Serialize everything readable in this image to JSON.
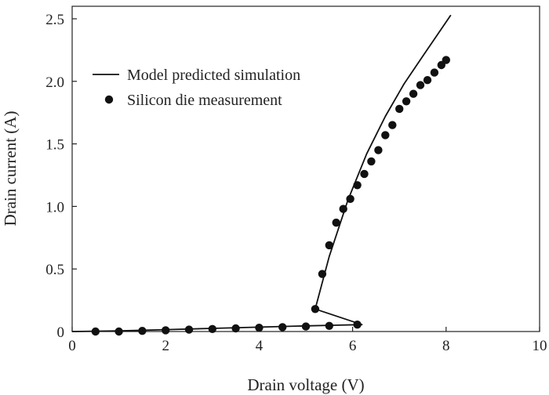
{
  "chart_data": {
    "type": "line",
    "title": "",
    "xlabel": "Drain voltage (V)",
    "ylabel": "Drain current (A)",
    "xlim": [
      0,
      10
    ],
    "ylim": [
      0,
      2.6
    ],
    "xticks": [
      0,
      2,
      4,
      6,
      8,
      10
    ],
    "yticks": [
      0,
      0.5,
      1.0,
      1.5,
      2.0,
      2.5
    ],
    "xtick_labels": [
      "0",
      "2",
      "4",
      "6",
      "8",
      "10"
    ],
    "ytick_labels": [
      "0",
      "0.5",
      "1.0",
      "1.5",
      "2.0",
      "2.5"
    ],
    "grid": false,
    "legend_position": "upper-left",
    "series": [
      {
        "name": "Model predicted simulation",
        "kind": "line",
        "color": "#111111",
        "x": [
          0,
          1,
          2,
          3,
          4,
          5,
          5.6,
          6.2,
          5.2,
          5.5,
          5.9,
          6.3,
          6.7,
          7.1,
          7.5,
          8.1
        ],
        "y": [
          0,
          0.005,
          0.015,
          0.025,
          0.035,
          0.045,
          0.05,
          0.055,
          0.18,
          0.6,
          1.05,
          1.42,
          1.72,
          1.98,
          2.2,
          2.53
        ]
      },
      {
        "name": "Silicon die measurement",
        "kind": "scatter",
        "color": "#111111",
        "x": [
          0.5,
          1.0,
          1.5,
          2.0,
          2.5,
          3.0,
          3.5,
          4.0,
          4.5,
          5.0,
          5.5,
          6.1,
          5.2,
          5.35,
          5.5,
          5.65,
          5.8,
          5.95,
          6.1,
          6.25,
          6.4,
          6.55,
          6.7,
          6.85,
          7.0,
          7.15,
          7.3,
          7.45,
          7.6,
          7.75,
          7.9,
          8.0
        ],
        "y": [
          0.0,
          0.0,
          0.005,
          0.01,
          0.015,
          0.02,
          0.025,
          0.03,
          0.035,
          0.04,
          0.045,
          0.055,
          0.18,
          0.46,
          0.69,
          0.87,
          0.98,
          1.06,
          1.17,
          1.26,
          1.36,
          1.45,
          1.57,
          1.65,
          1.78,
          1.84,
          1.9,
          1.97,
          2.01,
          2.07,
          2.13,
          2.17
        ]
      }
    ]
  }
}
